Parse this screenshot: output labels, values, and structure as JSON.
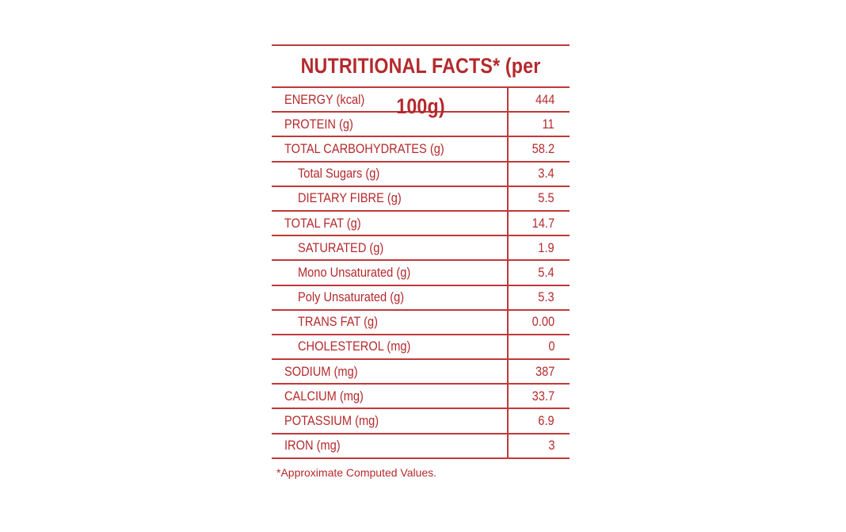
{
  "title": "NUTRITIONAL FACTS* (per 100g)",
  "rows": [
    {
      "name": "ENERGY (kcal)",
      "value": "444",
      "indent": false
    },
    {
      "name": "PROTEIN (g)",
      "value": "11",
      "indent": false
    },
    {
      "name": "TOTAL CARBOHYDRATES (g)",
      "value": "58.2",
      "indent": false
    },
    {
      "name": "Total Sugars (g)",
      "value": "3.4",
      "indent": true
    },
    {
      "name": "DIETARY FIBRE (g)",
      "value": "5.5",
      "indent": true
    },
    {
      "name": "TOTAL FAT (g)",
      "value": "14.7",
      "indent": false
    },
    {
      "name": "SATURATED (g)",
      "value": "1.9",
      "indent": true
    },
    {
      "name": "Mono Unsaturated (g)",
      "value": "5.4",
      "indent": true
    },
    {
      "name": "Poly Unsaturated (g)",
      "value": "5.3",
      "indent": true
    },
    {
      "name": "TRANS FAT (g)",
      "value": "0.00",
      "indent": true
    },
    {
      "name": "CHOLESTEROL (mg)",
      "value": "0",
      "indent": true
    },
    {
      "name": "SODIUM (mg)",
      "value": "387",
      "indent": false
    },
    {
      "name": "CALCIUM (mg)",
      "value": "33.7",
      "indent": false
    },
    {
      "name": "POTASSIUM (mg)",
      "value": "6.9",
      "indent": false
    },
    {
      "name": "IRON (mg)",
      "value": "3",
      "indent": false
    }
  ],
  "footnote": "*Approximate Computed Values.",
  "colors": {
    "text": "#b5292c",
    "rule": "#c0393b",
    "background": "#ffffff"
  }
}
